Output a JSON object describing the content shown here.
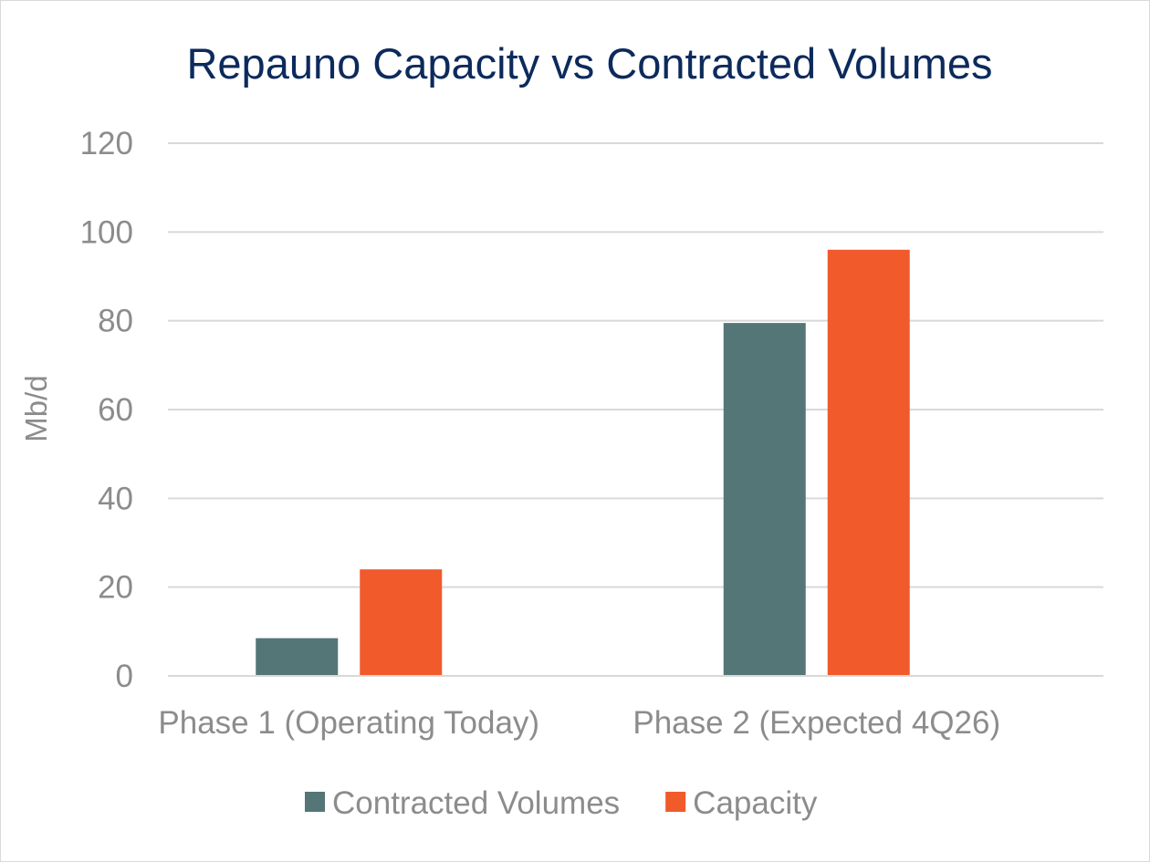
{
  "chart_data": {
    "type": "bar",
    "title": "Repauno Capacity vs Contracted Volumes",
    "xlabel": "",
    "ylabel": "Mb/d",
    "categories": [
      "Phase 1 (Operating Today)",
      "Phase 2 (Expected 4Q26)"
    ],
    "series": [
      {
        "name": "Contracted Volumes",
        "values": [
          8.5,
          79.5
        ],
        "color": "#547676"
      },
      {
        "name": "Capacity",
        "values": [
          24,
          96
        ],
        "color": "#f15a2b"
      }
    ],
    "ylim": [
      0,
      120
    ],
    "yticks": [
      "0",
      "20",
      "40",
      "60",
      "80",
      "100",
      "120"
    ],
    "grid": true,
    "legend_position": "bottom"
  }
}
